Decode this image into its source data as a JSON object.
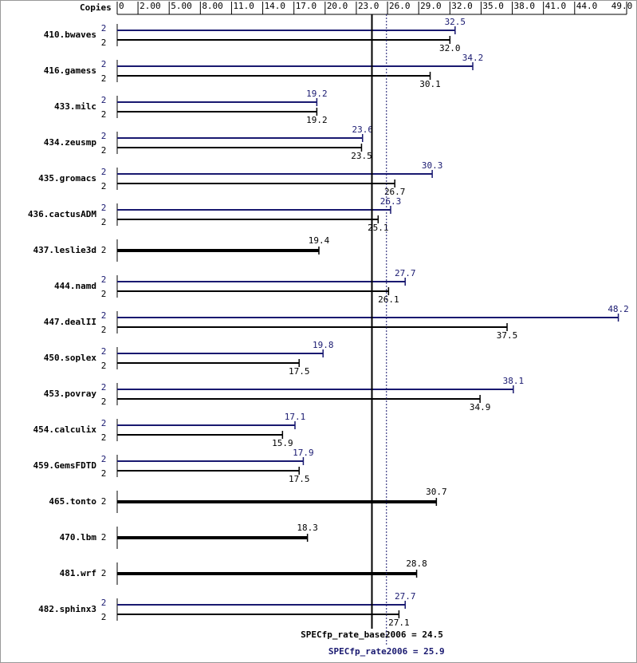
{
  "chart_data": {
    "type": "bar",
    "orientation": "horizontal",
    "x_label": "Copies",
    "categories": [
      "410.bwaves",
      "416.gamess",
      "433.milc",
      "434.zeusmp",
      "435.gromacs",
      "436.cactusADM",
      "437.leslie3d",
      "444.namd",
      "447.dealII",
      "450.soplex",
      "453.povray",
      "454.calculix",
      "459.GemsFDTD",
      "465.tonto",
      "470.lbm",
      "481.wrf",
      "482.sphinx3"
    ],
    "series": [
      {
        "color": "#191970",
        "copies": [
          2,
          2,
          2,
          2,
          2,
          2,
          null,
          2,
          2,
          2,
          2,
          2,
          2,
          null,
          null,
          null,
          2
        ],
        "values": [
          32.5,
          34.2,
          19.2,
          23.6,
          30.3,
          26.3,
          null,
          27.7,
          48.2,
          19.8,
          38.1,
          17.1,
          17.9,
          null,
          null,
          null,
          27.7
        ],
        "value_labels": [
          "32.5",
          "34.2",
          "19.2",
          "23.6",
          "30.3",
          "26.3",
          null,
          "27.7",
          "48.2",
          "19.8",
          "38.1",
          "17.1",
          "17.9",
          null,
          null,
          null,
          "27.7"
        ]
      },
      {
        "color": "#000000",
        "copies": [
          2,
          2,
          2,
          2,
          2,
          2,
          2,
          2,
          2,
          2,
          2,
          2,
          2,
          2,
          2,
          2,
          2
        ],
        "values": [
          32.0,
          30.1,
          19.2,
          23.5,
          26.7,
          25.1,
          19.4,
          26.1,
          37.5,
          17.5,
          34.9,
          15.9,
          17.5,
          30.7,
          18.3,
          28.8,
          27.1
        ],
        "value_labels": [
          "32.0",
          "30.1",
          "19.2",
          "23.5",
          "26.7",
          "25.1",
          "19.4",
          "26.1",
          "37.5",
          "17.5",
          "34.9",
          "15.9",
          "17.5",
          "30.7",
          "18.3",
          "28.8",
          "27.1"
        ]
      }
    ],
    "xlim": [
      0,
      49
    ],
    "xticks": [
      0,
      {
        "value": 2,
        "label": "2.00"
      },
      {
        "value": 5,
        "label": "5.00"
      },
      {
        "value": 8,
        "label": "8.00"
      },
      {
        "value": 11,
        "label": "11.0"
      },
      {
        "value": 14,
        "label": "14.0"
      },
      {
        "value": 17,
        "label": "17.0"
      },
      {
        "value": 20,
        "label": "20.0"
      },
      {
        "value": 23,
        "label": "23.0"
      },
      {
        "value": 26,
        "label": "26.0"
      },
      {
        "value": 29,
        "label": "29.0"
      },
      {
        "value": 32,
        "label": "32.0"
      },
      {
        "value": 35,
        "label": "35.0"
      },
      {
        "value": 38,
        "label": "38.0"
      },
      {
        "value": 41,
        "label": "41.0"
      },
      {
        "value": 44,
        "label": "44.0"
      },
      {
        "value": 49,
        "label": "49.0"
      }
    ],
    "reference_lines": [
      {
        "value": 24.5,
        "label": "SPECfp_rate_base2006 = 24.5",
        "color": "#000000",
        "dash": false
      },
      {
        "value": 25.9,
        "label": "SPECfp_rate2006 = 25.9",
        "color": "#191970",
        "dash": true
      }
    ]
  }
}
